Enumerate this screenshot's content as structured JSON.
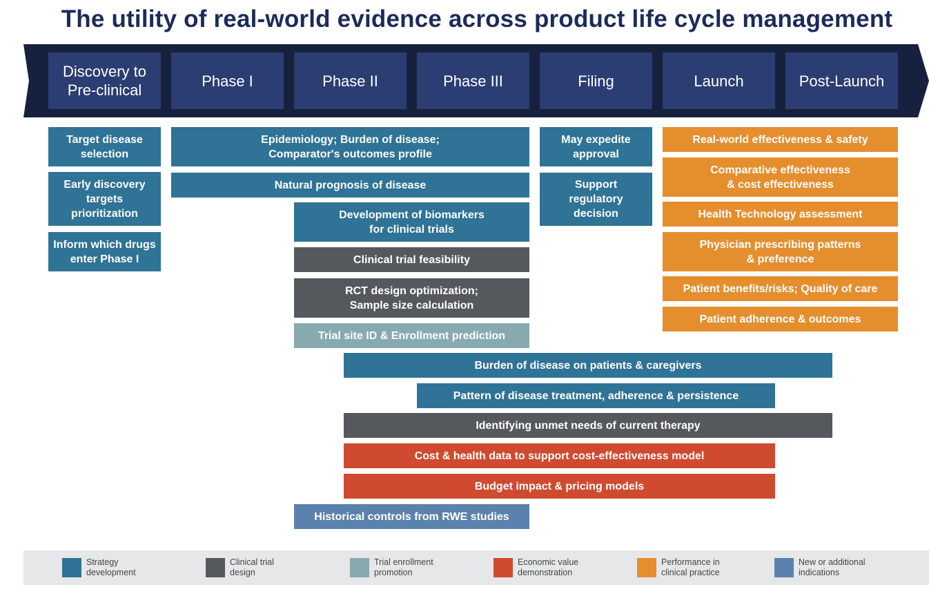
{
  "title": "The utility of real-world evidence across product life cycle management",
  "phases": [
    "Discovery to\nPre-clinical",
    "Phase I",
    "Phase II",
    "Phase III",
    "Filing",
    "Launch",
    "Post-Launch"
  ],
  "boxes": {
    "target_disease": "Target disease\nselection",
    "early_discovery": "Early discovery\ntargets\nprioritization",
    "inform_drugs": "Inform which drugs\nenter Phase I",
    "epidemiology": "Epidemiology; Burden of disease;\nComparator's outcomes profile",
    "natural_prognosis": "Natural prognosis of disease",
    "biomarkers": "Development of biomarkers\nfor clinical trials",
    "feasibility": "Clinical trial feasibility",
    "rct_design": "RCT design optimization;\nSample size calculation",
    "trial_site": "Trial site ID & Enrollment prediction",
    "expedite": "May expedite\napproval",
    "regulatory": "Support\nregulatory\ndecision",
    "rw_effectiveness": "Real-world effectiveness & safety",
    "comparative": "Comparative effectiveness\n& cost effectiveness",
    "hta": "Health Technology assessment",
    "prescribing": "Physician prescribing patterns\n& preference",
    "benefits": "Patient benefits/risks; Quality of care",
    "adherence": "Patient adherence & outcomes",
    "burden_caregivers": "Burden of disease on patients & caregivers",
    "pattern_treatment": "Pattern of disease treatment, adherence & persistence",
    "unmet_needs": "Identifying unmet needs of current therapy",
    "cost_health": "Cost & health data to support cost-effectiveness model",
    "budget_impact": "Budget impact & pricing models",
    "historical_controls": "Historical controls from RWE studies"
  },
  "colors": {
    "strategy": "#2f7396",
    "clinical": "#55595d",
    "enroll": "#86aab0",
    "econ": "#d04a2f",
    "perf": "#e58e2e",
    "new": "#5a82ad"
  },
  "legend": [
    "Strategy\ndevelopment",
    "Clinical trial\ndesign",
    "Trial enrollment\npromotion",
    "Economic value\ndemonstration",
    "Performance in\nclinical practice",
    "New or additional\nindications"
  ]
}
